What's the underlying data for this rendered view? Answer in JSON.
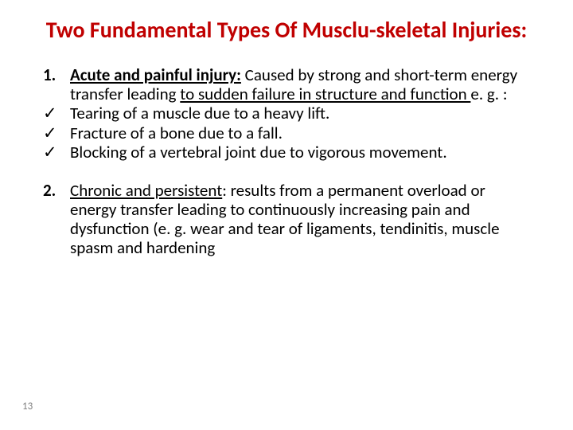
{
  "colors": {
    "title": "#c00000",
    "text": "#000000",
    "pagenum": "#808080",
    "bg": "#ffffff"
  },
  "fonts": {
    "title_size": 28,
    "body_size": 21,
    "pagenum_size": 13
  },
  "title": "Two Fundamental Types Of Musclu-skeletal Injuries:",
  "item1": {
    "num": "1.",
    "lead": "Acute  and painful injury:",
    "rest1": " Caused by strong and short-term  energy transfer leading ",
    "rest2": "to sudden failure in structure and function ",
    "rest3": "e. g. :"
  },
  "checks": [
    "Tearing of a muscle due to a heavy lift.",
    "Fracture of a bone due to a fall.",
    "Blocking of a vertebral joint due to vigorous movement."
  ],
  "checkmark": "✓",
  "item2": {
    "num": "2.",
    "lead": "Chronic and persistent",
    "rest": ": results from a permanent overload or energy transfer leading to continuously increasing pain and dysfunction (e. g. wear and tear of ligaments, tendinitis, muscle spasm and hardening"
  },
  "page": "13"
}
